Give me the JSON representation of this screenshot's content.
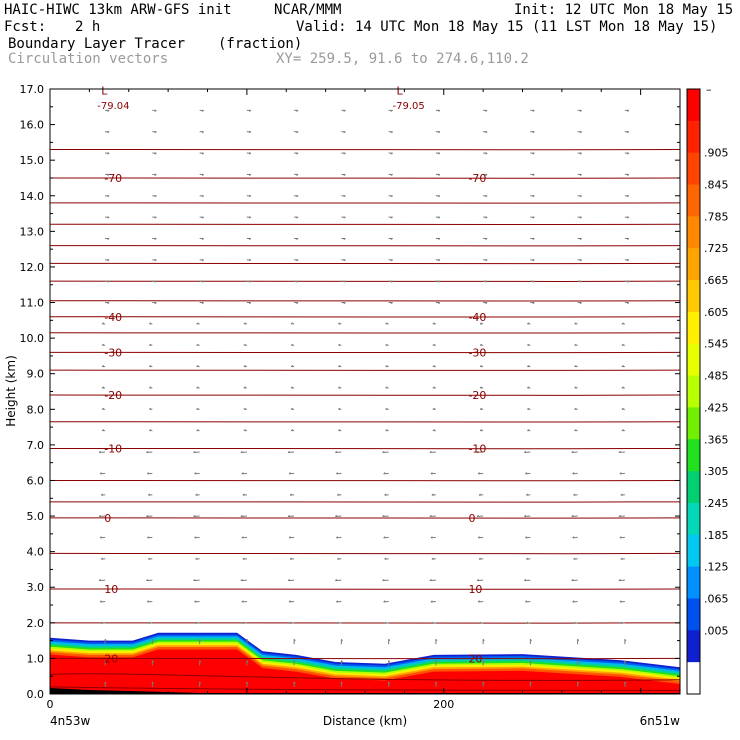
{
  "header": {
    "model": "HAIC-HIWC 13km ARW-GFS init",
    "org": "NCAR/MMM",
    "init": "Init: 12 UTC Mon 18 May 15",
    "fcst_label": "Fcst:",
    "fcst_value": "2 h",
    "valid": "Valid: 14 UTC Mon 18 May 15 (11 LST Mon 18 May 15)",
    "field": "Boundary Layer Tracer",
    "field_units": "(fraction)",
    "vectors": "Circulation vectors",
    "xy": "XY= 259.5, 91.6 to 274.6,110.2"
  },
  "chart_data": {
    "type": "heatmap",
    "xlabel": "Distance (km)",
    "ylabel": "Height (km)",
    "xlim": [
      0,
      320
    ],
    "ylim": [
      0,
      17
    ],
    "x_ticks": [
      0,
      200
    ],
    "x_tick_labels": [
      "0",
      "200"
    ],
    "x_end_labels": [
      "4n53w",
      "6n51w"
    ],
    "y_ticks": [
      0,
      1,
      2,
      3,
      4,
      5,
      6,
      7,
      8,
      9,
      10,
      11,
      12,
      13,
      14,
      15,
      16,
      17
    ],
    "y_tick_labels": [
      "0.0",
      "1.0",
      "2.0",
      "3.0",
      "4.0",
      "5.0",
      "6.0",
      "7.0",
      "8.0",
      "9.0",
      "10.0",
      "11.0",
      "12.0",
      "13.0",
      "14.0",
      "15.0",
      "16.0",
      "17.0"
    ],
    "colorbar": {
      "labels": [
        ".905",
        ".845",
        ".785",
        ".725",
        ".665",
        ".605",
        ".545",
        ".485",
        ".425",
        ".365",
        ".305",
        ".245",
        ".185",
        ".125",
        ".065",
        ".005"
      ],
      "top_label": "–",
      "colors": [
        "#ff0000",
        "#ff2200",
        "#ff4400",
        "#ff6600",
        "#ff8800",
        "#ffa500",
        "#ffc800",
        "#ffee00",
        "#e8ff00",
        "#b8ff00",
        "#70f000",
        "#20e020",
        "#00d070",
        "#00d8b8",
        "#00c8f0",
        "#0090ff",
        "#0050f0",
        "#1020d0",
        "#ffffff"
      ]
    },
    "temperature_contours": [
      {
        "label": "-70",
        "height": 14.5
      },
      {
        "label": "-40",
        "height": 10.6
      },
      {
        "label": "-30",
        "height": 9.6
      },
      {
        "label": "-20",
        "height": 8.4
      },
      {
        "label": "-10",
        "height": 6.9
      },
      {
        "label": "0",
        "height": 4.95
      },
      {
        "label": "10",
        "height": 2.95
      },
      {
        "label": "20",
        "height": 1.0
      }
    ],
    "unlabeled_contours": [
      15.3,
      13.8,
      13.2,
      12.6,
      12.1,
      11.6,
      11.05,
      10.15,
      9.1,
      7.65,
      6.0,
      5.4,
      3.95,
      2.0
    ],
    "lows": [
      {
        "symbol": "L",
        "value": "-79.04",
        "x": 25
      },
      {
        "symbol": "L",
        "value": "-79.05",
        "x": 175
      }
    ],
    "tracer_top_km": [
      {
        "x": 0,
        "top": 1.58
      },
      {
        "x": 20,
        "top": 1.5
      },
      {
        "x": 42,
        "top": 1.5
      },
      {
        "x": 55,
        "top": 1.72
      },
      {
        "x": 95,
        "top": 1.72
      },
      {
        "x": 108,
        "top": 1.2
      },
      {
        "x": 125,
        "top": 1.1
      },
      {
        "x": 145,
        "top": 0.9
      },
      {
        "x": 170,
        "top": 0.85
      },
      {
        "x": 195,
        "top": 1.1
      },
      {
        "x": 240,
        "top": 1.12
      },
      {
        "x": 290,
        "top": 0.95
      },
      {
        "x": 320,
        "top": 0.75
      }
    ]
  }
}
